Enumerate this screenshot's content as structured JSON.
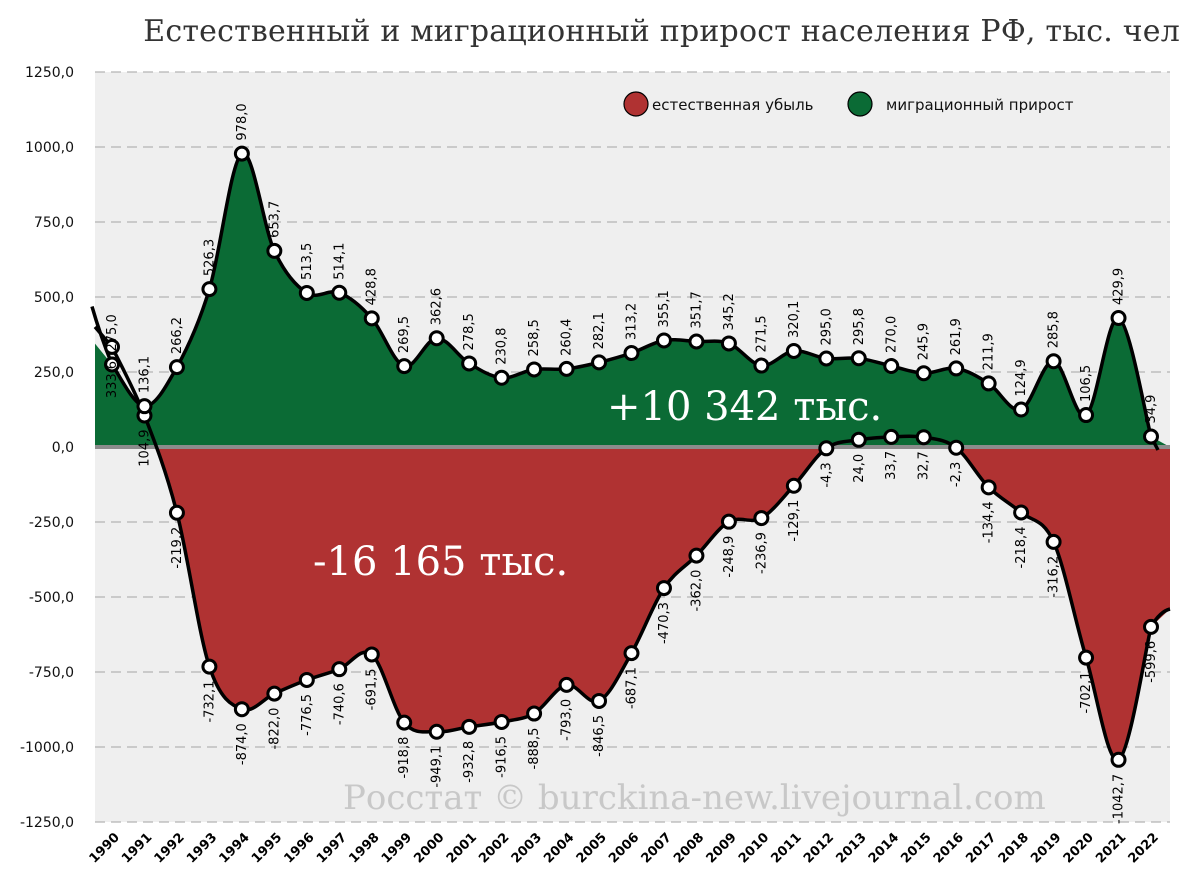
{
  "chart_data": {
    "type": "area",
    "title": "Естественный и миграционный прирост населения РФ, тыс. чел",
    "x": [
      "1990",
      "1991",
      "1992",
      "1993",
      "1994",
      "1995",
      "1996",
      "1997",
      "1998",
      "1999",
      "2000",
      "2001",
      "2002",
      "2003",
      "2004",
      "2005",
      "2006",
      "2007",
      "2008",
      "2009",
      "2010",
      "2011",
      "2012",
      "2013",
      "2014",
      "2015",
      "2016",
      "2017",
      "2018",
      "2019",
      "2020",
      "2021",
      "2022"
    ],
    "ylim": [
      -1250,
      1250
    ],
    "yticks": [
      "1250,0",
      "1000,0",
      "750,0",
      "500,0",
      "250,0",
      "0,0",
      "-250,0",
      "-500,0",
      "-750,0",
      "-1000,0",
      "-1250,0"
    ],
    "grid": true,
    "legend_position": "top-right",
    "series": [
      {
        "name": "естественная убыль",
        "color": "#b03232",
        "values": [
          333.6,
          104.9,
          -219.2,
          -732.1,
          -874.0,
          -822.0,
          -776.5,
          -740.6,
          -691.5,
          -918.8,
          -949.1,
          -932.8,
          -916.5,
          -888.5,
          -793.0,
          -846.5,
          -687.1,
          -470.3,
          -362.0,
          -248.9,
          -236.9,
          -129.1,
          -4.3,
          24.0,
          33.7,
          32.7,
          -2.3,
          -134.4,
          -218.4,
          -316.2,
          -702.1,
          -1042.7,
          -599.6
        ],
        "labels": [
          "333,6",
          "104,9",
          "-219,2",
          "-732,1",
          "-874,0",
          "-822,0",
          "-776,5",
          "-740,6",
          "-691,5",
          "-918,8",
          "-949,1",
          "-932,8",
          "-916,5",
          "-888,5",
          "-793,0",
          "-846,5",
          "-687,1",
          "-470,3",
          "-362,0",
          "-248,9",
          "-236,9",
          "-129,1",
          "-4,3",
          "24,0",
          "33,7",
          "32,7",
          "-2,3",
          "-134,4",
          "-218,4",
          "-316,2",
          "-702,1",
          "-1042,7",
          "-599,6"
        ]
      },
      {
        "name": "миграционный прирост",
        "color": "#0b6b35",
        "values": [
          275.0,
          136.1,
          266.2,
          526.3,
          978.0,
          653.7,
          513.5,
          514.1,
          428.8,
          269.5,
          362.6,
          278.5,
          230.8,
          258.5,
          260.4,
          282.1,
          313.2,
          355.1,
          351.7,
          345.2,
          271.5,
          320.1,
          295.0,
          295.8,
          270.0,
          245.9,
          261.9,
          211.9,
          124.9,
          285.8,
          106.5,
          429.9,
          34.9
        ],
        "labels": [
          "275,0",
          "136,1",
          "266,2",
          "526,3",
          "978,0",
          "653,7",
          "513,5",
          "514,1",
          "428,8",
          "269,5",
          "362,6",
          "278,5",
          "230,8",
          "258,5",
          "260,4",
          "282,1",
          "313,2",
          "355,1",
          "351,7",
          "345,2",
          "271,5",
          "320,1",
          "295,0",
          "295,8",
          "270,0",
          "245,9",
          "261,9",
          "211,9",
          "124,9",
          "285,8",
          "106,5",
          "429,9",
          "34,9"
        ]
      }
    ],
    "annotations": {
      "migration_total": "+10 342 тыс.",
      "natural_total": "-16 165 тыс.",
      "watermark": "Росстат © burckina-new.livejournal.com"
    }
  },
  "colors": {
    "background": "#efefef",
    "natural": "#b03232",
    "migration": "#0b6b35",
    "line": "#000000",
    "grid": "#b5b5b5"
  }
}
